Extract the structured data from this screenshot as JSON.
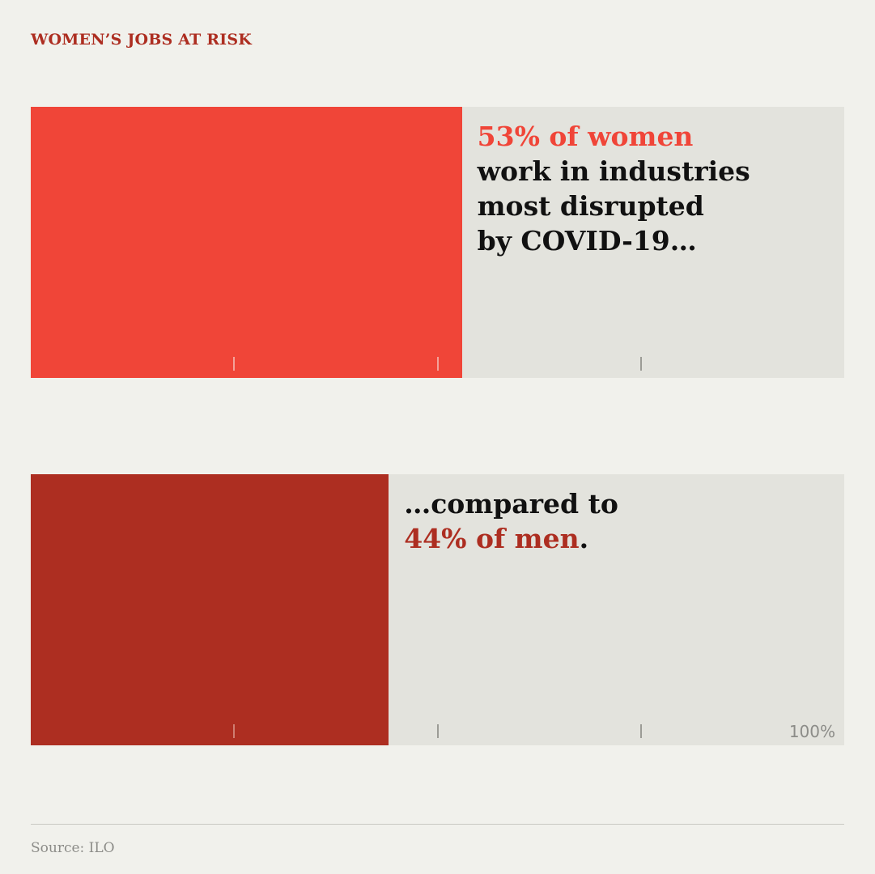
{
  "kicker": "WOMEN’S JOBS AT RISK",
  "chart_data": {
    "type": "bar",
    "orientation": "horizontal",
    "xlim": [
      0,
      100
    ],
    "xticks": [
      25,
      50,
      75,
      100
    ],
    "axis_end_label": "100%",
    "series": [
      {
        "key": "women",
        "value": 53,
        "color": "#f04538",
        "highlight": "53% of women",
        "text": "work in industries most disrupted by COVID-19…"
      },
      {
        "key": "men",
        "value": 44,
        "color": "#ad2e21",
        "lead": "…compared to",
        "highlight": "44% of men",
        "tail": "."
      }
    ],
    "track_color": "#e3e3dd"
  },
  "women_label": {
    "line1": "53% of women",
    "line2": "work in industries",
    "line3": "most disrupted",
    "line4": "by COVID-19…"
  },
  "men_label": {
    "line1": "…compared to",
    "line2": "44% of men",
    "line2_tail": "."
  },
  "source": "Source: ILO"
}
